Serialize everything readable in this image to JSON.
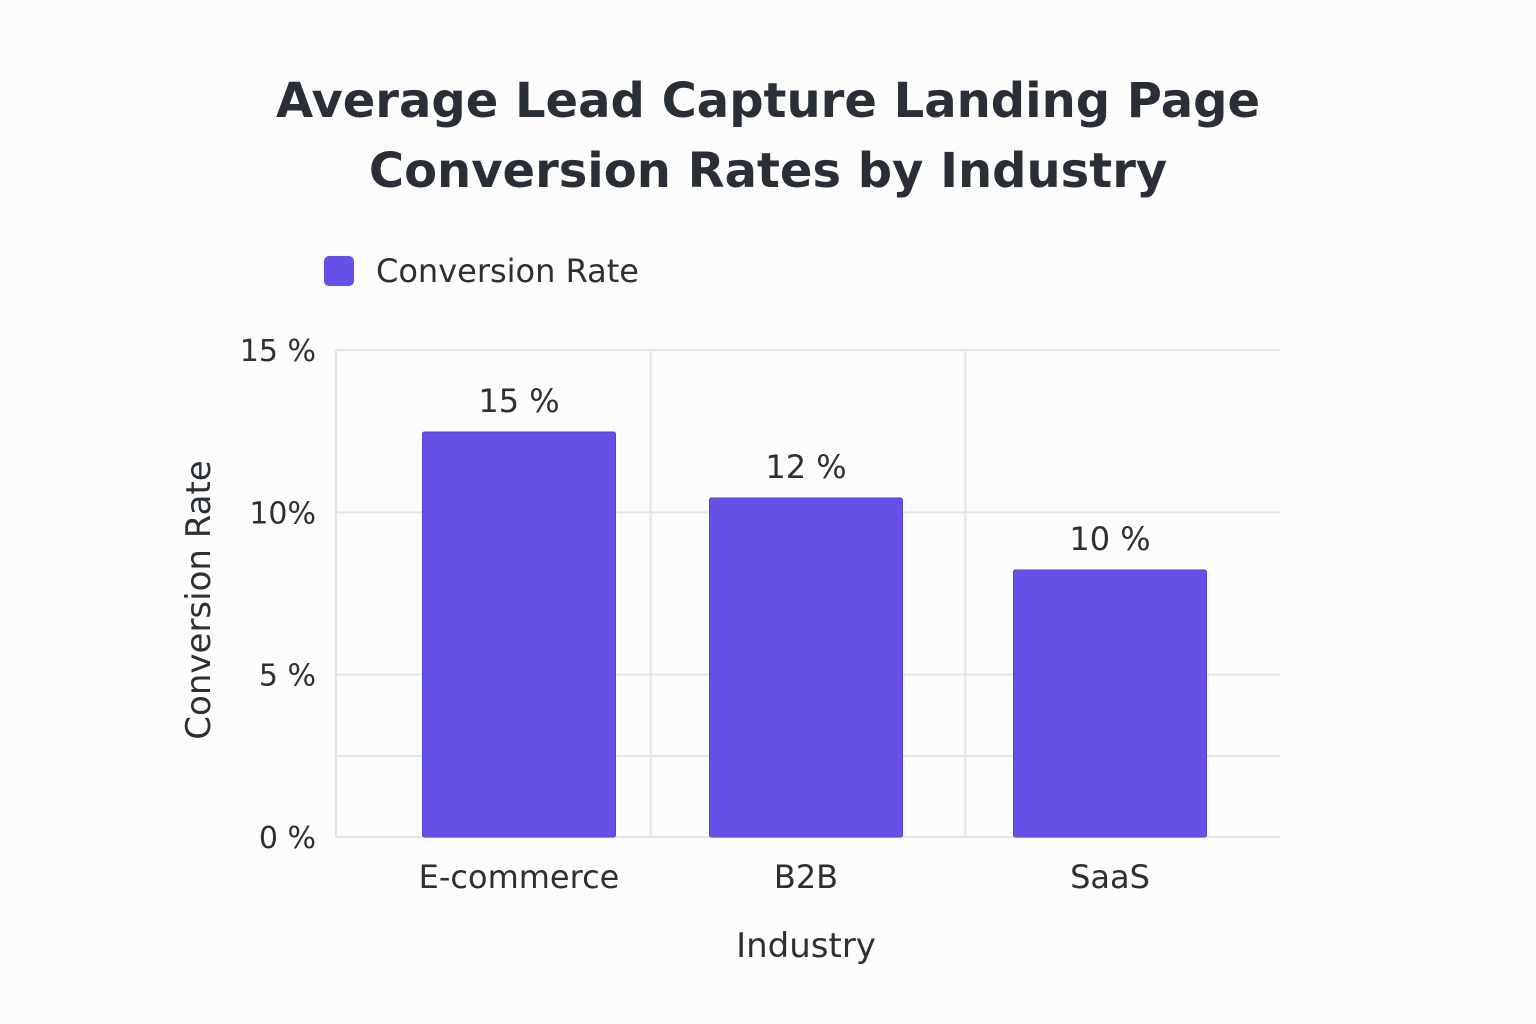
{
  "chart_data": {
    "type": "bar",
    "title_line1": "Average Lead Capture Landing Page",
    "title_line2": "Conversion Rates by Industry",
    "xlabel": "Industry",
    "ylabel": "Conversion Rate",
    "categories": [
      "E-commerce",
      "B2B",
      "SaaS"
    ],
    "series": [
      {
        "name": "Conversion Rate",
        "values": [
          15,
          12,
          10
        ],
        "value_labels": [
          "15 %",
          "12 %",
          "10 %"
        ]
      }
    ],
    "yticks": [
      {
        "value": 0,
        "label": "0 %"
      },
      {
        "value": 5,
        "label": "5 %"
      },
      {
        "value": 10,
        "label": "10%"
      },
      {
        "value": 15,
        "label": "15 %"
      }
    ],
    "ylim": [
      0,
      15
    ],
    "grid": true,
    "legend_position": "top-left"
  },
  "colors": {
    "bar": "#6651e8",
    "grid": "#e2e4e6",
    "text": "#2b2f36"
  }
}
